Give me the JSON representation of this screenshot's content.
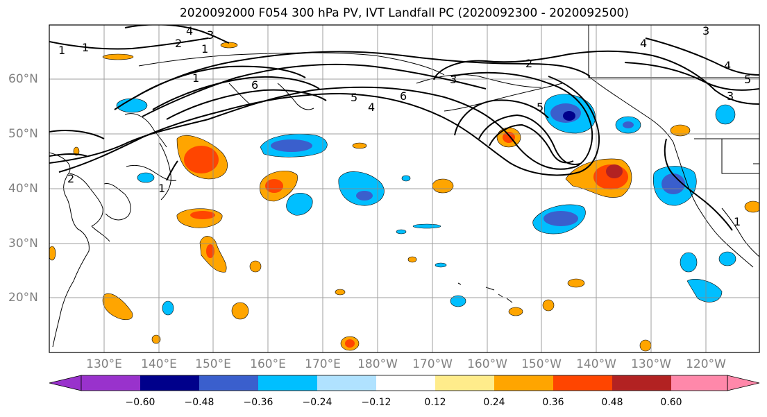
{
  "title": "2020092000 F054 300 hPa PV, IVT Landfall PC (2020092300 - 2020092500)",
  "lat_labels": [
    "60°N",
    "50°N",
    "40°N",
    "30°N",
    "20°N"
  ],
  "lon_labels": [
    "130°E",
    "140°E",
    "150°E",
    "160°E",
    "170°E",
    "180°W",
    "170°W",
    "160°W",
    "150°W",
    "140°W",
    "130°W",
    "120°W"
  ],
  "contour_labels": [
    "4",
    "3",
    "2",
    "1",
    "1",
    "1",
    "6",
    "5",
    "4",
    "6",
    "2",
    "3",
    "5",
    "3",
    "4",
    "4",
    "5",
    "3",
    "2",
    "1",
    "1",
    "1"
  ],
  "colorbar": {
    "tick_labels": [
      "−0.60",
      "−0.48",
      "−0.36",
      "−0.24",
      "−0.12",
      "0.12",
      "0.24",
      "0.36",
      "0.48",
      "0.60"
    ],
    "colors": [
      "#9932cc",
      "#00008b",
      "#3a5fcd",
      "#00bfff",
      "#b0e2ff",
      "#ffffff",
      "#ffec8b",
      "#ffa500",
      "#ff4500",
      "#b22222",
      "#ff88aa"
    ]
  }
}
